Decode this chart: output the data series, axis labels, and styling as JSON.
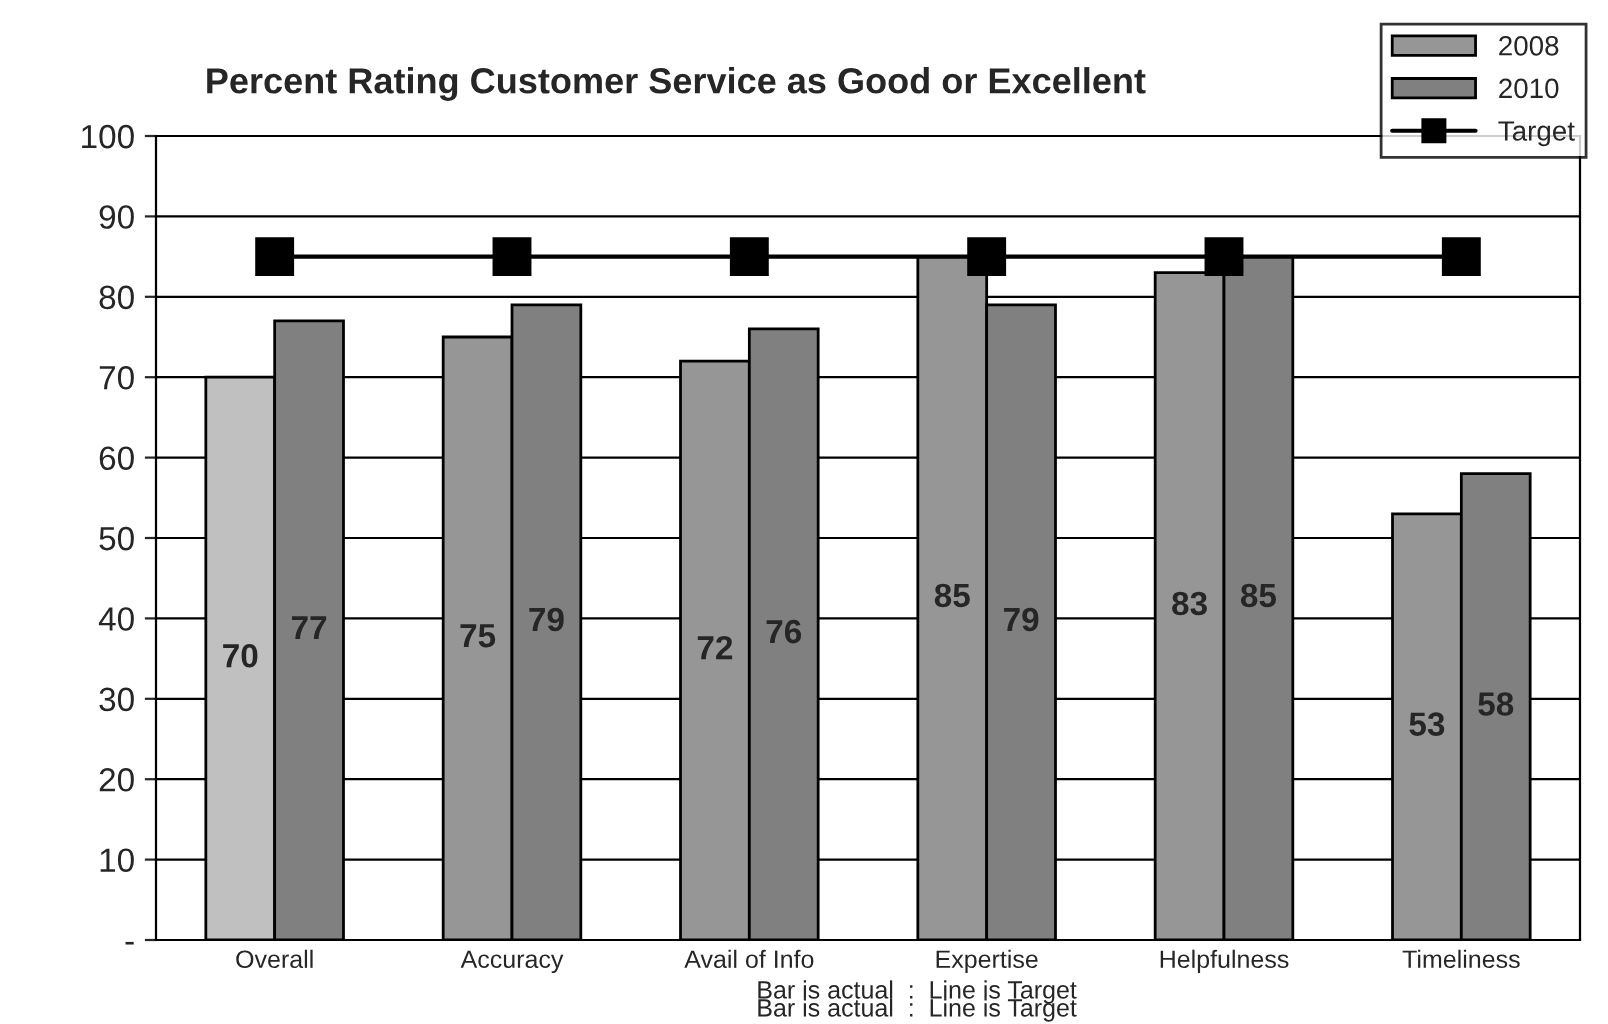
{
  "chart_data": {
    "type": "bar",
    "title": "Percent Rating Customer Service as Good or Excellent",
    "categories": [
      "Overall",
      "Accuracy",
      "Avail of Info",
      "Expertise",
      "Helpfulness",
      "Timeliness"
    ],
    "series": [
      {
        "name": "2008",
        "color": "#969696",
        "colors": [
          "#c0c0c0",
          "#969696",
          "#969696",
          "#969696",
          "#969696",
          "#969696"
        ],
        "values": [
          70,
          75,
          72,
          85,
          83,
          53
        ],
        "value_labels": [
          "70",
          "75",
          "72",
          "85",
          "83",
          "53"
        ]
      },
      {
        "name": "2010",
        "color": "#808080",
        "values": [
          77,
          79,
          76,
          79,
          85,
          58
        ],
        "value_labels": [
          "77",
          "79",
          "76",
          "79",
          "85",
          "58"
        ]
      },
      {
        "name": "Target",
        "type": "line",
        "color": "#000000",
        "marker": "square",
        "line_style": "solid",
        "values": [
          85,
          85,
          85,
          85,
          85,
          85
        ]
      }
    ],
    "ylim": [
      0,
      100
    ],
    "yticks": [
      {
        "value": 0,
        "label": "-"
      },
      10,
      20,
      30,
      40,
      50,
      60,
      70,
      80,
      90,
      100
    ],
    "grid": "y",
    "legend": "top right",
    "annotations": [
      "Bar is actual  :  Line is Target",
      "Bar is actual  :  Line is Target"
    ]
  }
}
